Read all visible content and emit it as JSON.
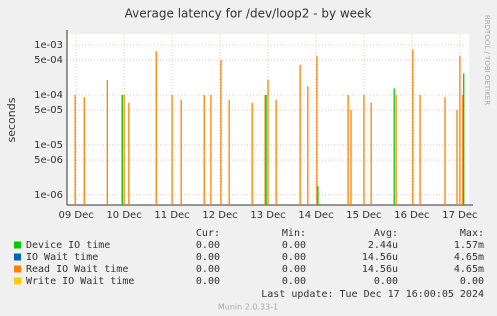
{
  "chart_data": {
    "type": "spike",
    "title": "Average latency for /dev/loop2 - by week",
    "y_label": "seconds",
    "side_label": "RRDTOOL / TOBI OETIKER",
    "log_y": true,
    "grid": true,
    "xlim": [
      -0.19,
      8.19
    ],
    "xticks": [
      {
        "value": 0,
        "label": "09 Dec"
      },
      {
        "value": 1,
        "label": "10 Dec"
      },
      {
        "value": 2,
        "label": "11 Dec"
      },
      {
        "value": 3,
        "label": "12 Dec"
      },
      {
        "value": 4,
        "label": "13 Dec"
      },
      {
        "value": 5,
        "label": "14 Dec"
      },
      {
        "value": 6,
        "label": "15 Dec"
      },
      {
        "value": 7,
        "label": "16 Dec"
      },
      {
        "value": 8,
        "label": "17 Dec"
      }
    ],
    "ylim": [
      6.3e-07,
      0.00166
    ],
    "yticks": [
      {
        "value": 1e-06,
        "label": "1e-06"
      },
      {
        "value": 5e-06,
        "label": "5e-06"
      },
      {
        "value": 1e-05,
        "label": "1e-05"
      },
      {
        "value": 5e-05,
        "label": "5e-05"
      },
      {
        "value": 0.0001,
        "label": "1e-04"
      },
      {
        "value": 0.0005,
        "label": "5e-04"
      },
      {
        "value": 0.001,
        "label": "1e-03"
      }
    ],
    "stats_headers": [
      "Cur:",
      "Min:",
      "Avg:",
      "Max:"
    ],
    "series": [
      {
        "name": "Device IO time",
        "color": "#00cc00",
        "stats": [
          "0.00",
          "0.00",
          "2.44u",
          "1.57m"
        ],
        "x": [
          0.96,
          3.96,
          5.04,
          6.63,
          8.08
        ],
        "values": [
          0.0001,
          0.0001,
          1.5e-06,
          0.000135,
          0.00027
        ]
      },
      {
        "name": "IO Wait time",
        "color": "#0066b3",
        "stats": [
          "0.00",
          "0.00",
          "14.56u",
          "4.65m"
        ],
        "x": [],
        "values": []
      },
      {
        "name": "Read IO Wait time",
        "color": "#ff8000",
        "stats": [
          "0.00",
          "0.00",
          "14.56u",
          "4.65m"
        ],
        "x": [
          -0.02,
          0.17,
          0.65,
          0.96,
          1.0,
          1.1,
          1.67,
          2.0,
          2.19,
          2.67,
          2.81,
          3.02,
          3.19,
          3.67,
          3.94,
          4.0,
          4.17,
          4.67,
          4.83,
          5.02,
          5.67,
          5.73,
          6.0,
          6.15,
          6.67,
          7.02,
          7.17,
          7.69,
          7.94,
          8.0,
          8.06
        ],
        "values": [
          0.0001,
          9e-05,
          0.0002,
          0.0001,
          0.0001,
          7e-05,
          0.00075,
          0.0001,
          8e-05,
          0.0001,
          0.0001,
          0.0005,
          8e-05,
          7e-05,
          0.0001,
          0.0002,
          8e-05,
          0.0004,
          0.00015,
          0.0006,
          0.0001,
          5e-05,
          0.0001,
          7e-05,
          0.0001,
          0.0008,
          0.0001,
          9e-05,
          5e-05,
          0.0006,
          0.0001
        ]
      },
      {
        "name": "Write IO Wait time",
        "color": "#ffcc00",
        "stats": [
          "0.00",
          "0.00",
          "0.00",
          "0.00"
        ],
        "x": [],
        "values": []
      }
    ],
    "last_update": "Last update:  Tue Dec 17 16:00:05 2024",
    "footer": "Munin 2.0.33-1"
  }
}
